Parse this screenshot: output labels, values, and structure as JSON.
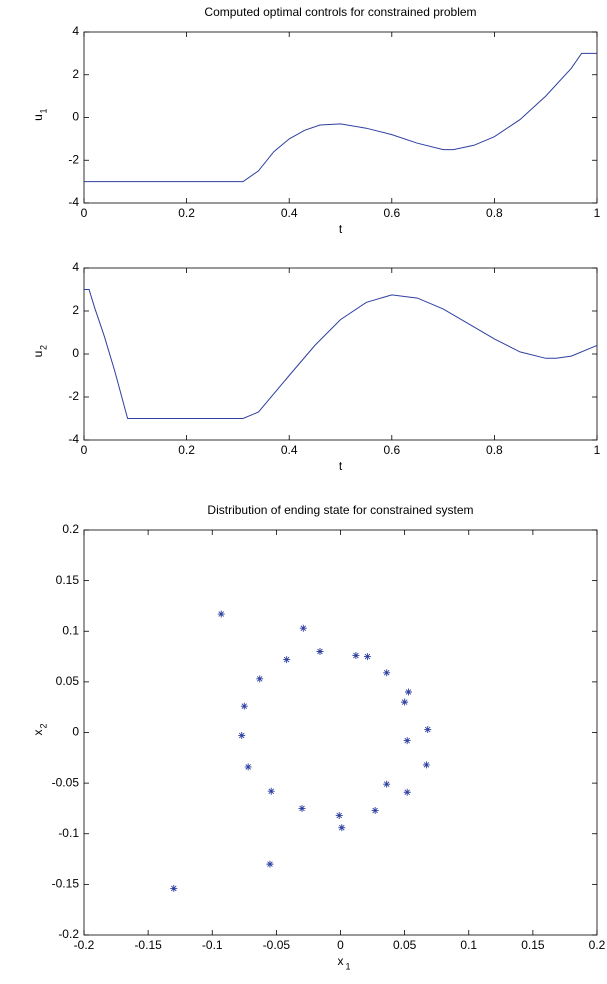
{
  "chart_data": [
    {
      "type": "line",
      "title": "Computed optimal controls for constrained problem",
      "xlabel": "t",
      "ylabel": "u",
      "ylabel_sub": "1",
      "x": [
        0,
        0.1,
        0.2,
        0.31,
        0.34,
        0.37,
        0.4,
        0.43,
        0.46,
        0.5,
        0.55,
        0.6,
        0.65,
        0.7,
        0.72,
        0.76,
        0.8,
        0.85,
        0.9,
        0.95,
        0.97,
        1.0
      ],
      "y": [
        -3,
        -3,
        -3,
        -3,
        -2.5,
        -1.6,
        -1.0,
        -0.6,
        -0.35,
        -0.3,
        -0.5,
        -0.8,
        -1.2,
        -1.5,
        -1.5,
        -1.3,
        -0.9,
        -0.1,
        1.0,
        2.3,
        3,
        3
      ],
      "color": "#2e3fa0",
      "xlim": [
        0,
        1
      ],
      "ylim": [
        -4,
        4
      ],
      "xticks": [
        0,
        0.2,
        0.4,
        0.6,
        0.8,
        1
      ],
      "yticks": [
        -4,
        -2,
        0,
        2,
        4
      ]
    },
    {
      "type": "line",
      "xlabel": "t",
      "ylabel": "u",
      "ylabel_sub": "2",
      "x": [
        0,
        0.01,
        0.02,
        0.04,
        0.06,
        0.085,
        0.1,
        0.2,
        0.31,
        0.34,
        0.4,
        0.45,
        0.5,
        0.55,
        0.6,
        0.65,
        0.7,
        0.75,
        0.8,
        0.85,
        0.9,
        0.92,
        0.95,
        1.0
      ],
      "y": [
        3,
        3,
        2.2,
        0.8,
        -0.8,
        -3,
        -3,
        -3,
        -3,
        -2.7,
        -1.0,
        0.4,
        1.6,
        2.4,
        2.75,
        2.6,
        2.1,
        1.4,
        0.7,
        0.1,
        -0.2,
        -0.2,
        -0.1,
        0.4
      ],
      "color": "#2e3fa0",
      "xlim": [
        0,
        1
      ],
      "ylim": [
        -4,
        4
      ],
      "xticks": [
        0,
        0.2,
        0.4,
        0.6,
        0.8,
        1
      ],
      "yticks": [
        -4,
        -2,
        0,
        2,
        4
      ]
    },
    {
      "type": "scatter",
      "title": "Distribution of ending state for constrained system",
      "xlabel": "x",
      "xlabel_sub": "1",
      "ylabel": "x",
      "ylabel_sub": "2",
      "x": [
        -0.093,
        -0.029,
        -0.016,
        -0.042,
        0.012,
        0.021,
        -0.063,
        0.036,
        0.053,
        -0.075,
        0.05,
        0.068,
        -0.077,
        0.052,
        -0.072,
        0.067,
        0.036,
        -0.054,
        0.052,
        -0.03,
        0.027,
        -0.001,
        0.001,
        -0.055,
        -0.13
      ],
      "y": [
        0.117,
        0.103,
        0.08,
        0.072,
        0.076,
        0.075,
        0.053,
        0.059,
        0.04,
        0.026,
        0.03,
        0.003,
        -0.003,
        -0.008,
        -0.034,
        -0.032,
        -0.051,
        -0.058,
        -0.059,
        -0.075,
        -0.077,
        -0.082,
        -0.094,
        -0.13,
        -0.154
      ],
      "color": "#2e3fa0",
      "xlim": [
        -0.2,
        0.2
      ],
      "ylim": [
        -0.2,
        0.2
      ],
      "xticks": [
        -0.2,
        -0.15,
        -0.1,
        -0.05,
        0,
        0.05,
        0.1,
        0.15,
        0.2
      ],
      "yticks": [
        -0.2,
        -0.15,
        -0.1,
        -0.05,
        0,
        0.05,
        0.1,
        0.15,
        0.2
      ]
    }
  ]
}
